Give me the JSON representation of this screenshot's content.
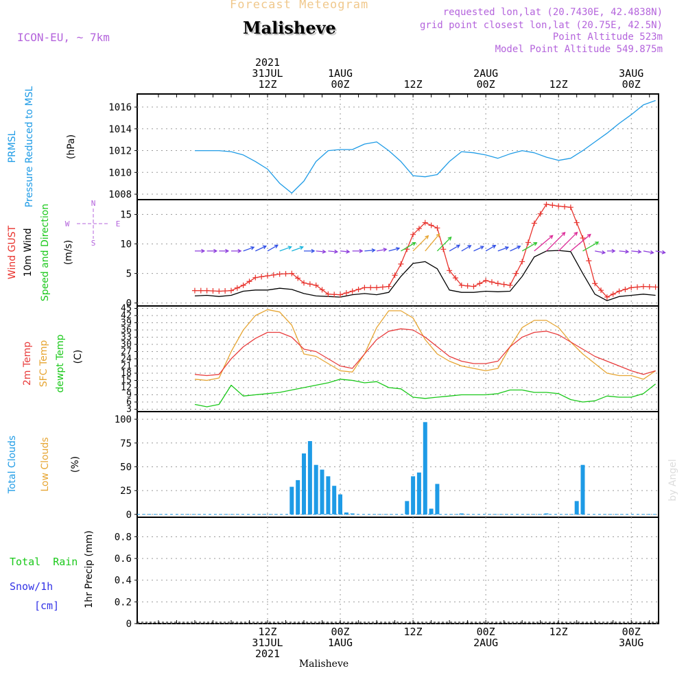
{
  "header": {
    "title": "Forecast Meteogram",
    "location": "Malisheve",
    "model": "ICON-EU, ~ 7km",
    "requested": "requested lon,lat (20.7430E, 42.4838N)",
    "gridpoint": "grid point closest lon,lat (20.75E, 42.5N)",
    "point_altitude": "Point Altitude 523m",
    "model_altitude": "Model Point Altitude 549.875m",
    "footer_location": "Malisheve",
    "watermark": "by Angel"
  },
  "colors": {
    "pressure": "#1e9be6",
    "gust": "#e8322c",
    "wind10m": "#000000",
    "wind_dir_label": "#19c819",
    "temp2m": "#e83c3c",
    "sfc_temp": "#e6a532",
    "dewpt": "#19c819",
    "total_clouds": "#1e9be6",
    "low_clouds": "#e6a532",
    "rain": "#19c819",
    "snow": "#3232e6",
    "header_purple": "#b464dc",
    "title_orange": "#f0c88c"
  },
  "time_axis": {
    "top_labels": [
      {
        "hour": 12,
        "lines": [
          "2021",
          "31JUL",
          "12Z"
        ]
      },
      {
        "hour": 24,
        "lines": [
          "1AUG",
          "00Z"
        ]
      },
      {
        "hour": 36,
        "lines": [
          "12Z"
        ]
      },
      {
        "hour": 48,
        "lines": [
          "2AUG",
          "00Z"
        ]
      },
      {
        "hour": 60,
        "lines": [
          "12Z"
        ]
      },
      {
        "hour": 72,
        "lines": [
          "3AUG",
          "00Z"
        ]
      }
    ],
    "bottom_labels": [
      {
        "hour": 12,
        "lines": [
          "12Z",
          "31JUL",
          "2021"
        ]
      },
      {
        "hour": 24,
        "lines": [
          "00Z",
          "1AUG"
        ]
      },
      {
        "hour": 36,
        "lines": [
          "12Z"
        ]
      },
      {
        "hour": 48,
        "lines": [
          "00Z",
          "2AUG"
        ]
      },
      {
        "hour": 60,
        "lines": [
          "12Z"
        ]
      },
      {
        "hour": 72,
        "lines": [
          "00Z",
          "3AUG"
        ]
      }
    ]
  },
  "panels": {
    "pressure": {
      "labels": [
        "PRMSL",
        "Pressure Reduced to MSL"
      ],
      "unit": "(hPa)"
    },
    "wind": {
      "labels": [
        "Wind GUST",
        "10m Wind",
        "Speed and Direction"
      ],
      "unit": "(m/s)",
      "compass": {
        "n": "N",
        "s": "S",
        "w": "W",
        "e": "E"
      }
    },
    "temp": {
      "labels": [
        "2m Temp",
        "SFC Temp",
        "dewpt Temp"
      ],
      "unit": "(C)"
    },
    "clouds": {
      "labels": [
        "Total Clouds",
        "Low Clouds"
      ],
      "unit": "(%)"
    },
    "precip": {
      "labels": [
        "Total  Rain",
        "Snow/1h",
        "[cm]"
      ],
      "unit": "1hr Precip (mm)"
    }
  },
  "chart_data": [
    {
      "type": "line",
      "panel": "pressure",
      "x": [
        0,
        2,
        4,
        6,
        8,
        10,
        12,
        14,
        16,
        18,
        20,
        22,
        24,
        26,
        28,
        30,
        32,
        34,
        36,
        38,
        40,
        42,
        44,
        46,
        48,
        50,
        52,
        54,
        56,
        58,
        60,
        62,
        64,
        66,
        68,
        70,
        72,
        74,
        76
      ],
      "series": [
        {
          "name": "PRMSL",
          "values": [
            1012.0,
            1012.0,
            1012.0,
            1011.9,
            1011.6,
            1011.0,
            1010.3,
            1009.0,
            1008.1,
            1009.2,
            1011.0,
            1012.0,
            1012.1,
            1012.1,
            1012.6,
            1012.8,
            1012.0,
            1011.0,
            1009.7,
            1009.6,
            1009.8,
            1011.0,
            1011.9,
            1011.8,
            1011.6,
            1011.3,
            1011.7,
            1012.0,
            1011.8,
            1011.4,
            1011.1,
            1011.3,
            1012.0,
            1012.8,
            1013.6,
            1014.5,
            1015.3,
            1016.2,
            1016.6
          ]
        }
      ],
      "ylim": [
        1007.5,
        1017.2
      ],
      "yticks": [
        1008,
        1010,
        1012,
        1014,
        1016
      ]
    },
    {
      "type": "line",
      "panel": "wind",
      "x": [
        0,
        2,
        4,
        6,
        8,
        10,
        12,
        14,
        16,
        18,
        20,
        22,
        24,
        26,
        28,
        30,
        32,
        34,
        36,
        38,
        40,
        42,
        44,
        46,
        48,
        50,
        52,
        54,
        56,
        58,
        60,
        62,
        64,
        66,
        68,
        70,
        72,
        74,
        76
      ],
      "series": [
        {
          "name": "Wind GUST",
          "values": [
            2.1,
            2.1,
            2.0,
            2.1,
            3.0,
            4.3,
            4.6,
            4.9,
            5.0,
            3.4,
            3.0,
            1.5,
            1.4,
            2.0,
            2.6,
            2.6,
            2.8,
            6.6,
            11.6,
            13.6,
            12.7,
            5.5,
            3.0,
            2.8,
            3.8,
            3.3,
            3.0,
            7.0,
            13.5,
            16.7,
            16.4,
            16.2,
            11.0,
            3.3,
            1.0,
            2.0,
            2.6,
            2.8,
            2.7
          ]
        },
        {
          "name": "10m Wind",
          "values": [
            1.2,
            1.3,
            1.1,
            1.3,
            2.0,
            2.2,
            2.2,
            2.5,
            2.3,
            1.6,
            1.2,
            1.1,
            1.0,
            1.4,
            1.6,
            1.4,
            1.8,
            4.5,
            6.7,
            7.0,
            5.8,
            2.2,
            1.8,
            1.8,
            2.0,
            1.9,
            2.0,
            4.5,
            7.8,
            8.8,
            8.9,
            8.7,
            5.0,
            1.5,
            0.4,
            1.1,
            1.3,
            1.5,
            1.3
          ]
        }
      ],
      "direction_arrows_deg": [
        270,
        270,
        270,
        270,
        250,
        245,
        240,
        250,
        250,
        270,
        275,
        275,
        275,
        270,
        265,
        260,
        255,
        240,
        225,
        220,
        225,
        240,
        240,
        245,
        240,
        250,
        245,
        240,
        230,
        225,
        225,
        230,
        240,
        280,
        270,
        275,
        275,
        280,
        280
      ],
      "ylim": [
        -0.5,
        17.5
      ],
      "yticks": [
        0,
        5,
        10,
        15
      ]
    },
    {
      "type": "line",
      "panel": "temp",
      "x": [
        0,
        2,
        4,
        6,
        8,
        10,
        12,
        14,
        16,
        18,
        20,
        22,
        24,
        26,
        28,
        30,
        32,
        34,
        36,
        38,
        40,
        42,
        44,
        46,
        48,
        50,
        52,
        54,
        56,
        58,
        60,
        62,
        64,
        66,
        68,
        70,
        72,
        74,
        76
      ],
      "series": [
        {
          "name": "2m Temp",
          "values": [
            17.5,
            17.0,
            17.5,
            24.0,
            29.0,
            32.5,
            35.0,
            35.0,
            33.0,
            28.0,
            27.0,
            24.0,
            21.0,
            20.0,
            26.0,
            32.0,
            35.5,
            36.5,
            36.0,
            33.0,
            29.0,
            25.0,
            23.0,
            22.0,
            22.0,
            23.0,
            29.0,
            33.0,
            35.0,
            35.5,
            34.0,
            31.0,
            28.0,
            25.0,
            23.0,
            21.0,
            19.0,
            17.5,
            19.0
          ]
        },
        {
          "name": "SFC Temp",
          "values": [
            15.5,
            15.0,
            16.0,
            27.0,
            36.0,
            42.0,
            44.5,
            43.5,
            38.0,
            26.0,
            25.0,
            22.0,
            19.0,
            18.5,
            26.0,
            37.0,
            44.0,
            44.0,
            41.0,
            32.0,
            26.0,
            23.0,
            21.0,
            20.0,
            19.0,
            20.0,
            29.0,
            37.0,
            40.0,
            40.0,
            37.0,
            31.0,
            26.0,
            22.0,
            18.0,
            17.0,
            17.0,
            15.5,
            19.0
          ]
        },
        {
          "name": "dewpt Temp",
          "values": [
            5.0,
            4.0,
            5.0,
            13.0,
            8.5,
            9.0,
            9.5,
            10.0,
            11.0,
            12.0,
            13.0,
            14.0,
            15.5,
            15.0,
            14.0,
            14.5,
            12.0,
            11.5,
            8.0,
            7.5,
            8.0,
            8.5,
            9.0,
            9.0,
            9.0,
            9.5,
            11.0,
            11.0,
            10.0,
            10.0,
            9.5,
            7.0,
            6.0,
            6.5,
            8.5,
            8.0,
            8.0,
            9.5,
            13.5
          ]
        }
      ],
      "ylim": [
        2,
        46
      ],
      "yticks": [
        3,
        6,
        9,
        12,
        15,
        18,
        21,
        24,
        27,
        30,
        33,
        36,
        39,
        42,
        45
      ]
    },
    {
      "type": "bar",
      "panel": "clouds",
      "x": [
        16,
        17,
        18,
        19,
        20,
        21,
        22,
        23,
        24,
        25,
        26,
        35,
        36,
        37,
        38,
        39,
        40,
        41,
        44,
        58,
        63,
        64
      ],
      "series": [
        {
          "name": "Total Clouds",
          "values": [
            29,
            36,
            64,
            77,
            52,
            47,
            40,
            30,
            21,
            2,
            1,
            14,
            40,
            44,
            97,
            6,
            32,
            0,
            1,
            1,
            14,
            52
          ]
        }
      ],
      "ylim": [
        -3,
        108
      ],
      "yticks": [
        0,
        25,
        50,
        75,
        100
      ]
    },
    {
      "type": "bar",
      "panel": "precip",
      "x": [],
      "series": [
        {
          "name": "Total  Rain",
          "values": []
        }
      ],
      "ylim": [
        0,
        0.98
      ],
      "yticks": [
        0,
        0.2,
        0.4,
        0.6,
        0.8
      ]
    }
  ]
}
